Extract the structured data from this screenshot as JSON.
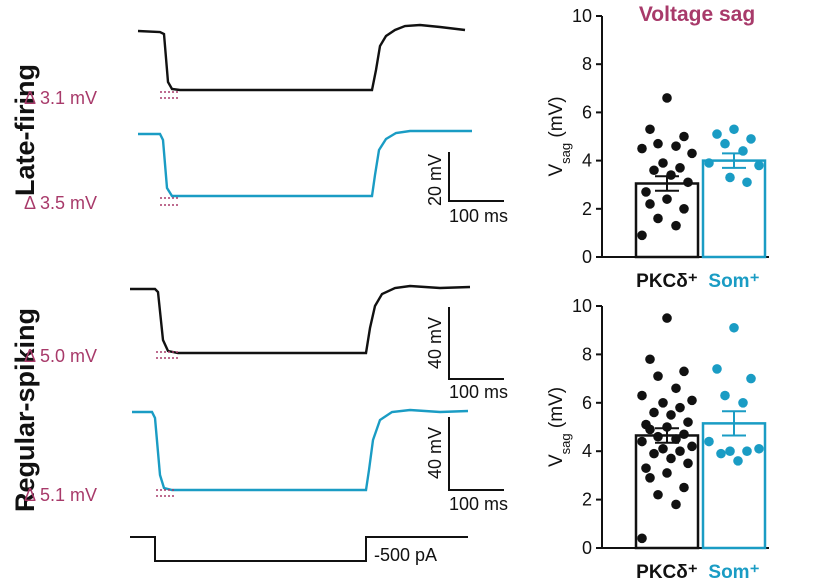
{
  "colors": {
    "pkc": "#111111",
    "som": "#1a9cc4",
    "accent": "#a83a6a"
  },
  "rows": [
    {
      "label": "Late-firing",
      "delta_top": "Δ 3.1 mV",
      "delta_bottom": "Δ 3.5 mV",
      "scalebar_top": {
        "v": "20 mV",
        "t": "100 ms"
      }
    },
    {
      "label": "Regular-spiking",
      "delta_top": "Δ 5.0 mV",
      "delta_bottom": "Δ 5.1 mV",
      "scalebar_top": {
        "v": "40 mV",
        "t": "100 ms"
      },
      "scalebar_bottom": {
        "v": "40 mV",
        "t": "100 ms"
      }
    }
  ],
  "stimulus_label": "-500 pA",
  "chart_data": [
    {
      "type": "bar",
      "title": "Voltage sag",
      "ylabel": "V",
      "ylabel_sub": "sag",
      "ylabel_unit": " (mV)",
      "ylim": [
        0,
        10
      ],
      "yticks": [
        "0",
        "2",
        "4",
        "6",
        "8",
        "10"
      ],
      "categories": [
        "PKCδ⁺",
        "Som⁺"
      ],
      "series": [
        {
          "name": "PKCδ⁺",
          "mean": 3.05,
          "sem": 0.3,
          "points": [
            6.6,
            5.3,
            5.0,
            4.7,
            4.6,
            4.5,
            4.3,
            3.9,
            3.7,
            3.6,
            3.4,
            3.1,
            2.7,
            2.4,
            2.2,
            2.0,
            1.6,
            1.3,
            0.9
          ]
        },
        {
          "name": "Som⁺",
          "mean": 4.0,
          "sem": 0.3,
          "points": [
            5.3,
            5.1,
            4.9,
            4.7,
            4.4,
            3.9,
            3.8,
            3.3,
            3.1
          ]
        }
      ]
    },
    {
      "type": "bar",
      "title": "",
      "ylabel": "V",
      "ylabel_sub": "sag",
      "ylabel_unit": " (mV)",
      "ylim": [
        0,
        10
      ],
      "yticks": [
        "0",
        "2",
        "4",
        "6",
        "8",
        "10"
      ],
      "categories": [
        "PKCδ⁺",
        "Som⁺"
      ],
      "series": [
        {
          "name": "PKCδ⁺",
          "mean": 4.65,
          "sem": 0.3,
          "points": [
            9.5,
            7.8,
            7.3,
            7.1,
            6.6,
            6.3,
            6.1,
            6.0,
            5.8,
            5.6,
            5.5,
            5.2,
            5.1,
            5.0,
            4.9,
            4.7,
            4.6,
            4.5,
            4.4,
            4.2,
            4.1,
            4.0,
            3.9,
            3.7,
            3.5,
            3.3,
            3.1,
            2.9,
            2.5,
            2.2,
            1.8,
            0.4
          ]
        },
        {
          "name": "Som⁺",
          "mean": 5.15,
          "sem": 0.5,
          "points": [
            9.1,
            7.4,
            7.0,
            6.3,
            6.0,
            4.4,
            4.1,
            4.0,
            4.0,
            3.9,
            3.6
          ]
        }
      ]
    }
  ]
}
